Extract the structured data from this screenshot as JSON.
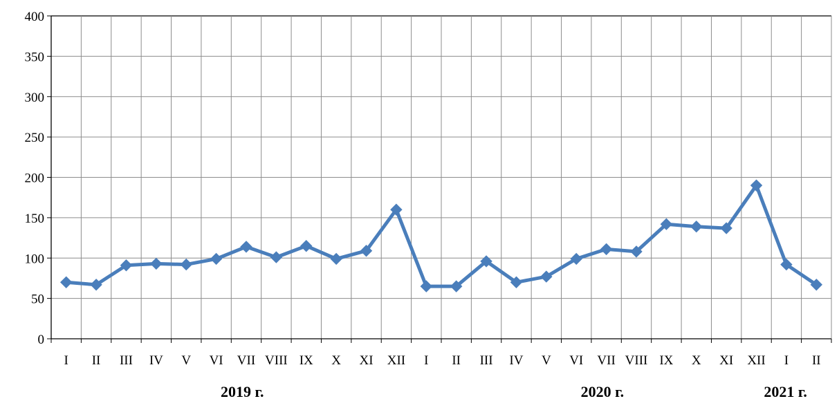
{
  "chart_data": {
    "type": "line",
    "title": "",
    "xlabel": "",
    "ylabel": "",
    "ylim": [
      0,
      400
    ],
    "yticks": [
      0,
      50,
      100,
      150,
      200,
      250,
      300,
      350,
      400
    ],
    "grid": true,
    "legend": "none",
    "categories": [
      "I",
      "II",
      "III",
      "IV",
      "V",
      "VI",
      "VII",
      "VIII",
      "IX",
      "X",
      "XI",
      "XII",
      "I",
      "II",
      "III",
      "IV",
      "V",
      "VI",
      "VII",
      "VIII",
      "IX",
      "X",
      "XI",
      "XII",
      "I",
      "II"
    ],
    "year_groups": [
      {
        "label": "2019 г.",
        "start": 0,
        "end": 11
      },
      {
        "label": "2020 г.",
        "start": 12,
        "end": 23
      },
      {
        "label": "2021 г.",
        "start": 24,
        "end": 25
      }
    ],
    "series": [
      {
        "color": "#4a7ebb",
        "values": [
          70,
          67,
          91,
          93,
          92,
          99,
          114,
          101,
          115,
          99,
          109,
          160,
          65,
          65,
          96,
          70,
          77,
          99,
          111,
          108,
          142,
          139,
          137,
          190,
          92,
          67
        ]
      }
    ]
  },
  "colors": {
    "grid": "#8c8c8c",
    "axis": "#000000",
    "line": "#4a7ebb"
  }
}
